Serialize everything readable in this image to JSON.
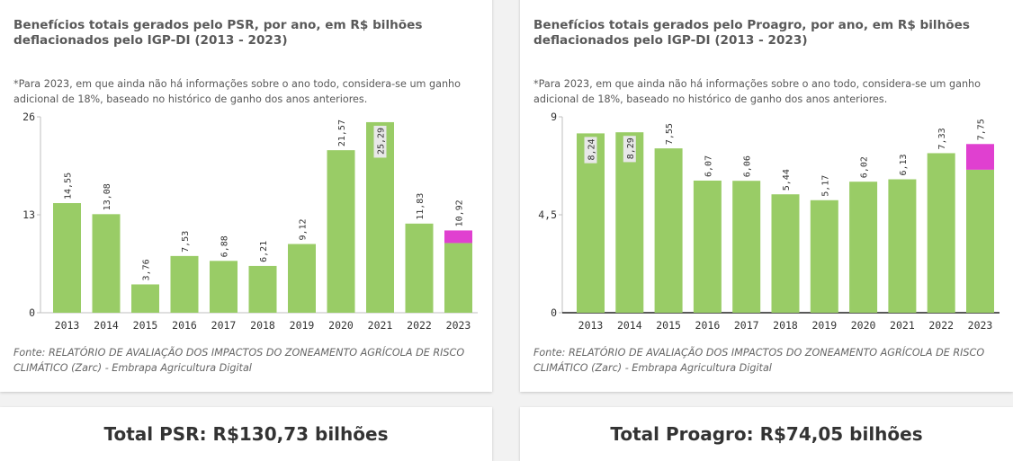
{
  "colors": {
    "bar": "#99cc66",
    "highlight": "#e040d0",
    "label_bg": "#e8e8e8"
  },
  "chart_data": [
    {
      "type": "bar",
      "title": "Benefícios totais gerados pelo PSR, por ano, em R$ bilhões deflacionados pelo IGP-DI (2013 - 2023)",
      "note": "*Para 2023, em que ainda não há informações sobre o ano todo, considera-se um ganho adicional de 18%, baseado no histórico de ganho dos anos anteriores.",
      "source": "Fonte: RELATÓRIO DE AVALIAÇÃO DOS IMPACTOS DO ZONEAMENTO AGRÍCOLA DE RISCO CLIMÁTICO (Zarc) - Embrapa Agricultura Digital",
      "categories": [
        "2013",
        "2014",
        "2015",
        "2016",
        "2017",
        "2018",
        "2019",
        "2020",
        "2021",
        "2022",
        "2023"
      ],
      "values": [
        14.55,
        13.08,
        3.76,
        7.53,
        6.88,
        6.21,
        9.12,
        21.57,
        25.29,
        11.83,
        10.92
      ],
      "labels": [
        "14,55",
        "13,08",
        "3,76",
        "7,53",
        "6,88",
        "6,21",
        "9,12",
        "21,57",
        "25,29",
        "11,83",
        "10,92"
      ],
      "estimated_additional_last": 1.67,
      "inside_label_index": [
        8
      ],
      "ylim": [
        0,
        26
      ],
      "yticks": [
        0,
        13,
        26
      ],
      "ytick_labels": [
        "0",
        "13",
        "26"
      ]
    },
    {
      "type": "bar",
      "title": "Benefícios totais gerados pelo Proagro, por ano, em R$ bilhões deflacionados pelo IGP-DI (2013 - 2023)",
      "note": "*Para 2023, em que ainda não há informações sobre o ano todo, considera-se um ganho adicional de 18%, baseado no histórico de ganho dos anos anteriores.",
      "source": "Fonte: RELATÓRIO DE AVALIAÇÃO DOS IMPACTOS DO ZONEAMENTO AGRÍCOLA DE RISCO CLIMÁTICO (Zarc) - Embrapa Agricultura Digital",
      "categories": [
        "2013",
        "2014",
        "2015",
        "2016",
        "2017",
        "2018",
        "2019",
        "2020",
        "2021",
        "2022",
        "2023"
      ],
      "values": [
        8.24,
        8.29,
        7.55,
        6.07,
        6.06,
        5.44,
        5.17,
        6.02,
        6.13,
        7.33,
        7.75
      ],
      "labels": [
        "8,24",
        "8,29",
        "7,55",
        "6,07",
        "6,06",
        "5,44",
        "5,17",
        "6,02",
        "6,13",
        "7,33",
        "7,75"
      ],
      "estimated_additional_last": 1.18,
      "inside_label_index": [
        0,
        1
      ],
      "ylim": [
        0,
        9
      ],
      "yticks": [
        0,
        4.5,
        9
      ],
      "ytick_labels": [
        "0",
        "4,5",
        "9"
      ]
    }
  ],
  "totals": {
    "psr": "Total PSR: R$130,73 bilhões",
    "proagro": "Total Proagro: R$74,05 bilhões"
  }
}
